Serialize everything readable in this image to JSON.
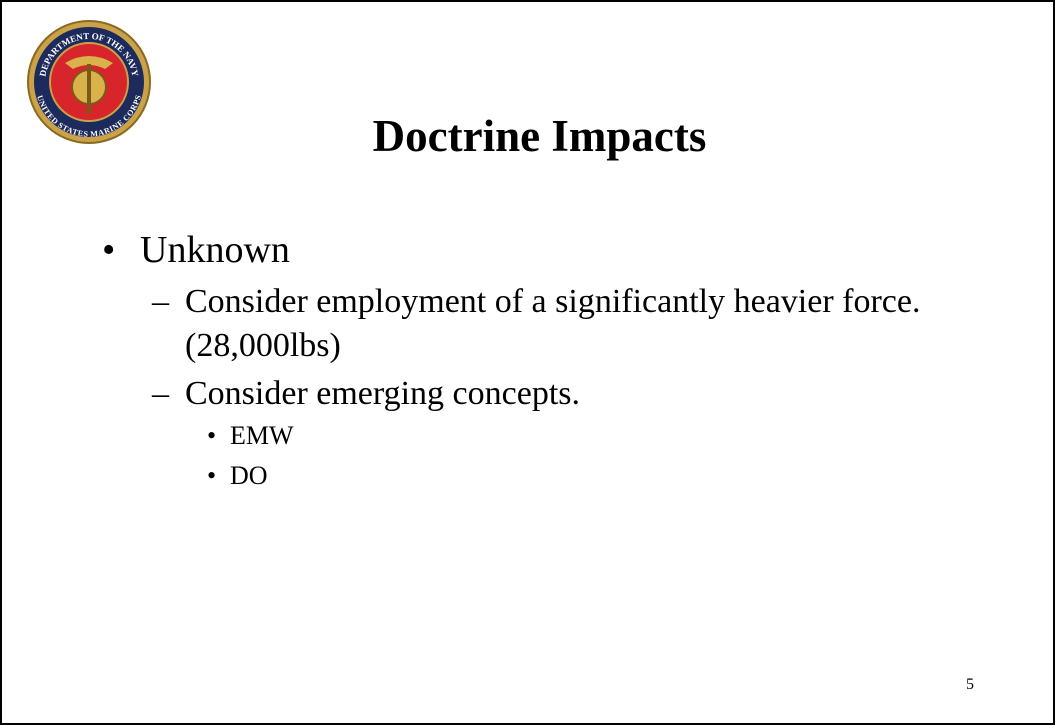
{
  "seal": {
    "top_text": "DEPARTMENT OF THE NAVY",
    "bottom_text": "UNITED STATES MARINE CORPS"
  },
  "title": "Doctrine Impacts",
  "bullets": [
    {
      "text": "Unknown",
      "children": [
        {
          "text": "Consider employment of a significantly heavier force. (28,000lbs)",
          "children": []
        },
        {
          "text": "Consider emerging concepts.",
          "children": [
            "EMW",
            "DO"
          ]
        }
      ]
    }
  ],
  "page_number": "5"
}
